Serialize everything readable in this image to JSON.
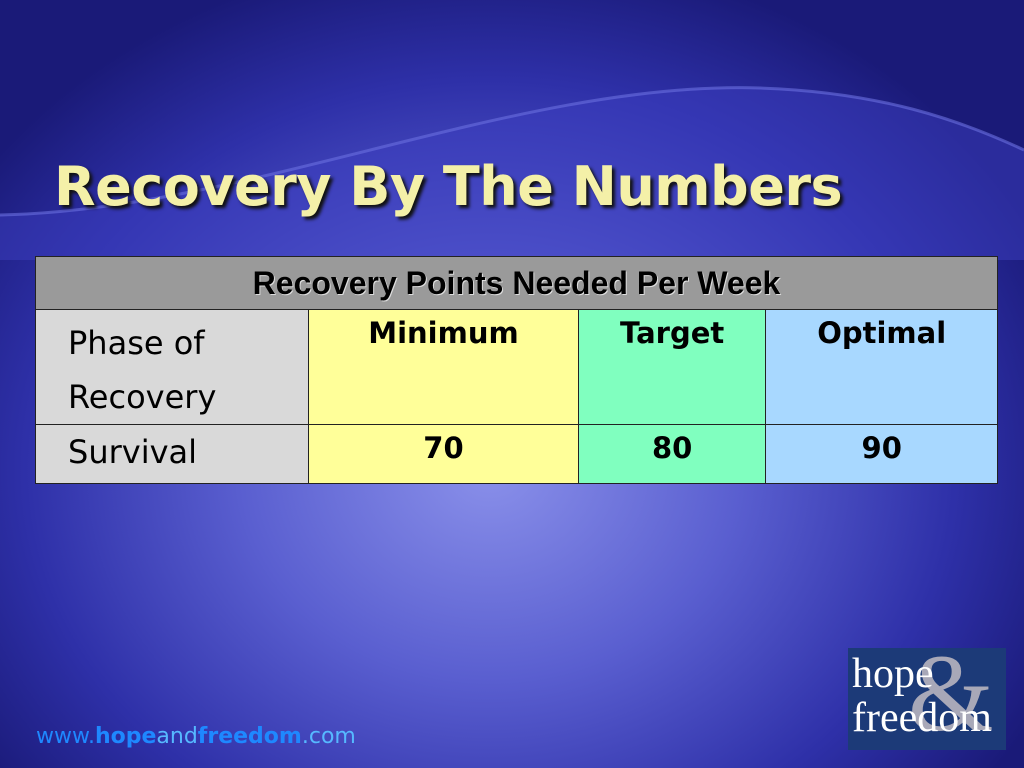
{
  "title": "Recovery By The Numbers",
  "table": {
    "caption": "Recovery Points Needed Per Week",
    "columns": [
      "Phase of Recovery",
      "Minimum",
      "Target",
      "Optimal"
    ],
    "rows": [
      [
        "Survival",
        "70",
        "80",
        "90"
      ]
    ]
  },
  "footer": {
    "parts": [
      "www.",
      "hope",
      "and",
      "freedom",
      ".com"
    ]
  },
  "logo": {
    "line1": "hope",
    "ampersand": "&",
    "line2": "freedom"
  }
}
